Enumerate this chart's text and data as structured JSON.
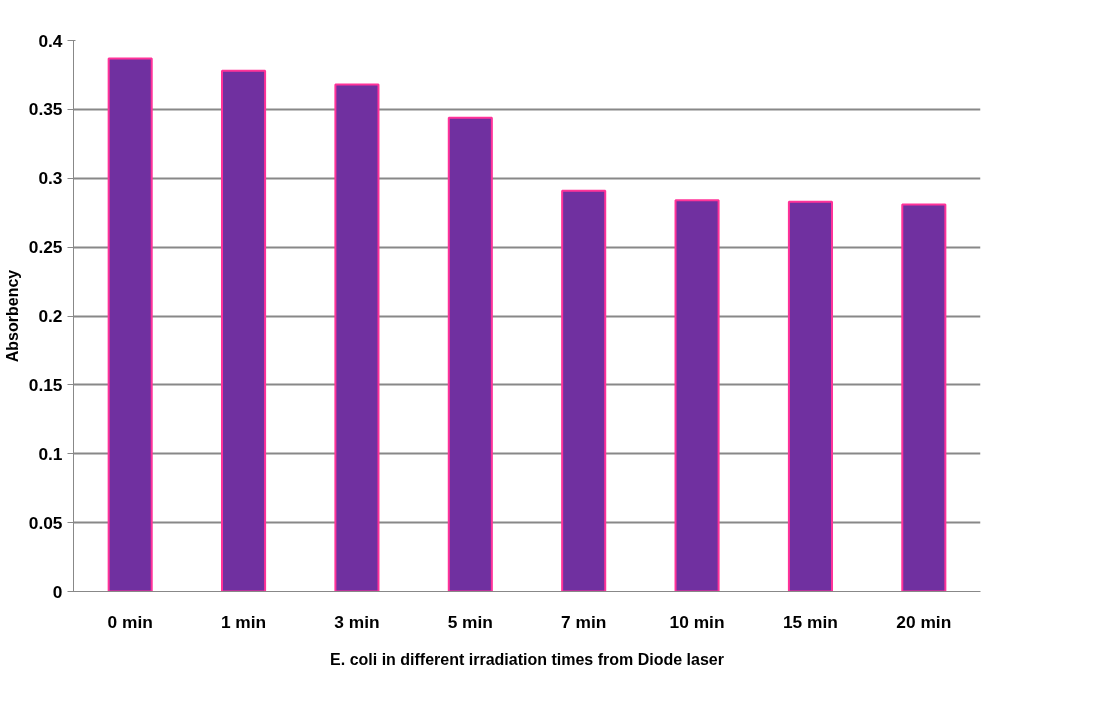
{
  "chart_data": {
    "type": "bar",
    "xlabel": "E. coli in different irradiation times from Diode laser",
    "ylabel": "Absorbency",
    "categories": [
      "0 min",
      "1 min",
      "3 min",
      "5 min",
      "7 min",
      "10 min",
      "15 min",
      "20 min"
    ],
    "values": [
      0.387,
      0.378,
      0.368,
      0.344,
      0.291,
      0.284,
      0.283,
      0.281
    ],
    "color": "#7030a0",
    "ylim": [
      0,
      0.4
    ],
    "yticks": [
      0,
      0.05,
      0.1,
      0.15,
      0.2,
      0.25,
      0.3,
      0.35,
      0.4
    ],
    "grid": "y"
  }
}
